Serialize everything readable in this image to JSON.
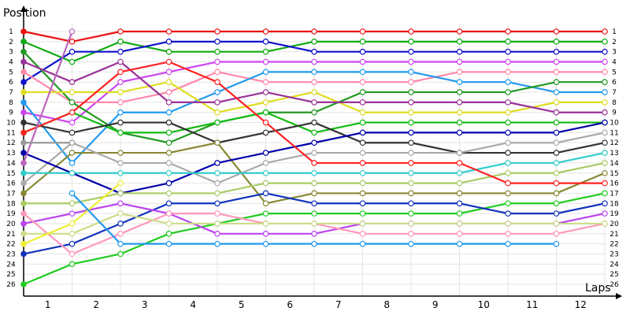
{
  "chart_data": {
    "type": "line",
    "title": "",
    "ylabel": "Position",
    "xlabel": "Laps",
    "x": [
      0,
      1,
      2,
      3,
      4,
      5,
      6,
      7,
      8,
      9,
      10,
      11,
      12
    ],
    "x_ticks": [
      "1",
      "2",
      "3",
      "4",
      "5",
      "6",
      "7",
      "8",
      "9",
      "10",
      "11",
      "12"
    ],
    "y_ticks": [
      "1",
      "2",
      "3",
      "4",
      "5",
      "6",
      "7",
      "8",
      "9",
      "10",
      "11",
      "12",
      "13",
      "14",
      "15",
      "16",
      "17",
      "18",
      "19",
      "20",
      "21",
      "22",
      "23",
      "24",
      "25",
      "26"
    ],
    "ylim": [
      1,
      26
    ],
    "y_inverted": true,
    "grid": true,
    "series": [
      {
        "color": "#ee1111",
        "values": [
          1,
          2,
          1,
          1,
          1,
          1,
          1,
          1,
          1,
          1,
          1,
          1,
          1
        ]
      },
      {
        "color": "#11aa11",
        "values": [
          2,
          4,
          2,
          3,
          3,
          3,
          2,
          2,
          2,
          2,
          2,
          2,
          2
        ]
      },
      {
        "color": "#1111cc",
        "values": [
          6,
          3,
          3,
          2,
          2,
          2,
          3,
          3,
          3,
          3,
          3,
          3,
          3
        ]
      },
      {
        "color": "#cc44ee",
        "values": [
          9,
          10,
          6,
          5,
          4,
          4,
          4,
          4,
          4,
          4,
          4,
          4,
          4
        ]
      },
      {
        "color": "#ff88aa",
        "values": [
          5,
          8,
          8,
          7,
          5,
          6,
          6,
          6,
          6,
          5,
          5,
          5,
          5
        ]
      },
      {
        "color": "#2299ee",
        "values": [
          8,
          14,
          9,
          9,
          7,
          5,
          5,
          5,
          5,
          6,
          6,
          7,
          7
        ]
      },
      {
        "color": "#229922",
        "values": [
          3,
          8,
          11,
          12,
          10,
          9,
          9,
          7,
          7,
          7,
          7,
          6,
          6
        ]
      },
      {
        "color": "#dddd22",
        "values": [
          7,
          7,
          7,
          6,
          9,
          8,
          7,
          9,
          9,
          9,
          9,
          8,
          8
        ]
      },
      {
        "color": "#993399",
        "values": [
          4,
          6,
          4,
          8,
          8,
          7,
          8,
          8,
          8,
          8,
          8,
          9,
          9
        ]
      },
      {
        "color": "#11bb11",
        "values": [
          11,
          9,
          11,
          11,
          10,
          9,
          11,
          10,
          10,
          10,
          10,
          10,
          10
        ]
      },
      {
        "color": "#333333",
        "values": [
          10,
          11,
          10,
          10,
          12,
          11,
          10,
          12,
          12,
          13,
          13,
          13,
          12
        ]
      },
      {
        "color": "#888833",
        "values": [
          17,
          13,
          13,
          13,
          12,
          18,
          17,
          17,
          17,
          17,
          17,
          17,
          15
        ]
      },
      {
        "color": "#aaaaaa",
        "values": [
          16,
          12,
          14,
          14,
          16,
          14,
          13,
          13,
          13,
          13,
          12,
          12,
          11
        ]
      },
      {
        "color": "#0000aa",
        "values": [
          13,
          15,
          17,
          16,
          14,
          13,
          12,
          11,
          11,
          11,
          11,
          11,
          10
        ]
      },
      {
        "color": "#33cccc",
        "values": [
          15,
          15,
          15,
          15,
          15,
          15,
          15,
          15,
          15,
          15,
          14,
          14,
          13
        ]
      },
      {
        "color": "#aacc66",
        "values": [
          18,
          18,
          17,
          17,
          17,
          16,
          16,
          16,
          16,
          16,
          15,
          15,
          14
        ]
      },
      {
        "color": "#ff2222",
        "values": [
          11,
          9,
          5,
          4,
          6,
          10,
          14,
          14,
          14,
          14,
          16,
          16,
          16
        ]
      },
      {
        "color": "#22cc22",
        "values": [
          26,
          24,
          23,
          21,
          20,
          19,
          19,
          19,
          19,
          19,
          18,
          18,
          17
        ]
      },
      {
        "color": "#1133bb",
        "values": [
          23,
          22,
          20,
          18,
          18,
          17,
          18,
          18,
          18,
          18,
          19,
          19,
          18
        ]
      },
      {
        "color": "#bb44ee",
        "values": [
          20,
          19,
          18,
          19,
          21,
          21,
          21,
          20,
          20,
          20,
          20,
          20,
          19
        ]
      },
      {
        "color": "#ff99bb",
        "values": [
          19,
          23,
          21,
          19,
          19,
          20,
          20,
          21,
          21,
          21,
          21,
          21,
          20
        ]
      },
      {
        "color": "#ccdd88",
        "values": [
          21,
          21,
          19,
          20,
          20,
          20,
          20,
          20,
          20,
          20,
          20,
          20,
          20
        ]
      },
      {
        "color": "#eeee33",
        "values": [
          22,
          20,
          16,
          null,
          null,
          null,
          null,
          null,
          null,
          null,
          null,
          null,
          null
        ]
      },
      {
        "color": "#2299ee",
        "values": [
          null,
          17,
          22,
          22,
          22,
          22,
          22,
          22,
          22,
          22,
          22,
          22,
          null
        ]
      },
      {
        "color": "#bb66bb",
        "values": [
          14,
          1,
          null,
          null,
          null,
          null,
          null,
          null,
          null,
          null,
          null,
          null,
          null
        ]
      },
      {
        "color": "#999999",
        "values": [
          12,
          12,
          null,
          null,
          null,
          null,
          null,
          null,
          null,
          null,
          null,
          null,
          null
        ]
      }
    ]
  }
}
